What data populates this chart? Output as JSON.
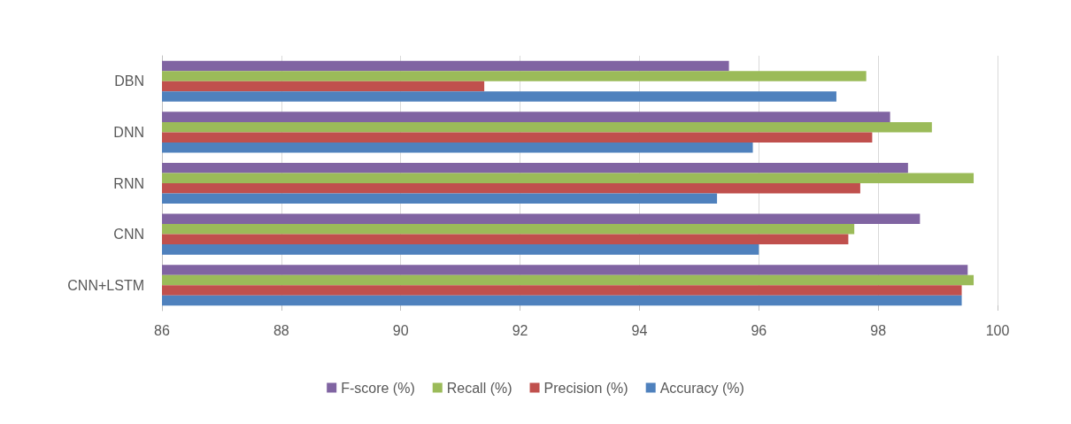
{
  "chart_data": {
    "type": "bar",
    "orientation": "horizontal",
    "categories": [
      "DBN",
      "DNN",
      "RNN",
      "CNN",
      "CNN+LSTM"
    ],
    "series": [
      {
        "name": "F-score (%)",
        "color": "#8064a2",
        "values": [
          95.5,
          98.2,
          98.5,
          98.7,
          99.5
        ]
      },
      {
        "name": "Recall (%)",
        "color": "#9bbb59",
        "values": [
          97.8,
          98.9,
          99.6,
          97.6,
          99.6
        ]
      },
      {
        "name": "Precision (%)",
        "color": "#c0504d",
        "values": [
          91.4,
          97.9,
          97.7,
          97.5,
          99.4
        ]
      },
      {
        "name": "Accuracy (%)",
        "color": "#4f81bd",
        "values": [
          97.3,
          95.9,
          95.3,
          96.0,
          99.4
        ]
      }
    ],
    "xlim": [
      86,
      100
    ],
    "xticks": [
      86,
      88,
      90,
      92,
      94,
      96,
      98,
      100
    ],
    "grid": "x",
    "legend": "bottom"
  }
}
